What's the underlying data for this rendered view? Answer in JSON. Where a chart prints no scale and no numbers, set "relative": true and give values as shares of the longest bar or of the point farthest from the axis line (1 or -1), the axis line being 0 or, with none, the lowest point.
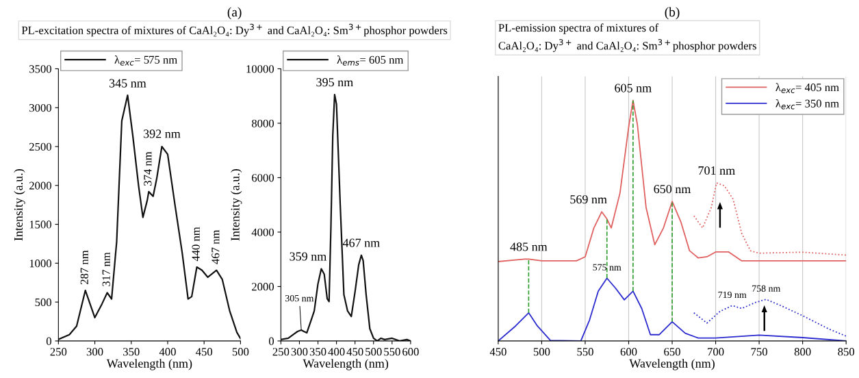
{
  "chart_data": [
    {
      "type": "line",
      "title": "(a)",
      "subtitle": "PL-excitation spectra of mixtures of CaAl₂O₄: Dy$^{3+}$ and CaAl₂O₄: Sm$^{3+}$phosphor powders",
      "xlabel": "Wavelength (nm)",
      "ylabel": "Intensity (a.u.)",
      "xlim": [
        250,
        500
      ],
      "ylim": [
        0,
        3500
      ],
      "xticks": [
        250,
        300,
        350,
        400,
        450,
        500
      ],
      "yticks": [
        0,
        500,
        1000,
        1500,
        2000,
        2500,
        3000,
        3500
      ],
      "legend": "top left",
      "grid": false,
      "series": [
        {
          "name": "λ$_{exc}$= 575 nm",
          "color": "#111111",
          "x": [
            250,
            265,
            275,
            287,
            300,
            310,
            317,
            323,
            330,
            337,
            345,
            352,
            360,
            366,
            372,
            374,
            380,
            385,
            392,
            400,
            410,
            415,
            420,
            428,
            433,
            440,
            447,
            455,
            467,
            475,
            485,
            495,
            500
          ],
          "values": [
            20,
            80,
            190,
            650,
            300,
            480,
            620,
            540,
            1280,
            2830,
            3160,
            2650,
            2000,
            1590,
            1810,
            1920,
            1860,
            2090,
            2500,
            2400,
            1750,
            1440,
            1130,
            540,
            570,
            950,
            910,
            820,
            910,
            790,
            390,
            110,
            30
          ]
        }
      ],
      "annotations": [
        {
          "text": "287 nm",
          "x": 287,
          "y": 650
        },
        {
          "text": "317 nm",
          "x": 317,
          "y": 625
        },
        {
          "text": "345 nm",
          "x": 345,
          "y": 3155
        },
        {
          "text": "374 nm",
          "x": 374,
          "y": 1918
        },
        {
          "text": "392 nm",
          "x": 392,
          "y": 2505
        },
        {
          "text": "440 nm",
          "x": 440,
          "y": 950
        },
        {
          "text": "467 nm",
          "x": 467,
          "y": 912
        }
      ]
    },
    {
      "type": "line",
      "xlabel": "Wavelength (nm)",
      "ylabel": "Intensity (a.u.)",
      "xlim": [
        250,
        600
      ],
      "ylim": [
        0,
        10000
      ],
      "xticks": [
        250,
        300,
        350,
        400,
        450,
        500,
        550,
        600
      ],
      "yticks": [
        0,
        2000,
        4000,
        6000,
        8000,
        10000
      ],
      "legend": "top left",
      "grid": false,
      "series": [
        {
          "name": "λ$_{ems}$= 605 nm",
          "color": "#111111",
          "x": [
            250,
            270,
            285,
            295,
            305,
            312,
            320,
            330,
            340,
            350,
            359,
            367,
            375,
            380,
            385,
            390,
            395,
            400,
            410,
            420,
            430,
            440,
            450,
            460,
            467,
            472,
            480,
            490,
            500,
            510,
            520,
            530,
            550,
            570,
            590,
            600
          ],
          "values": [
            50,
            100,
            250,
            350,
            400,
            350,
            300,
            700,
            1100,
            2100,
            2650,
            2450,
            1550,
            1450,
            4200,
            7550,
            9050,
            8700,
            5050,
            1700,
            1100,
            900,
            1800,
            2800,
            3150,
            2950,
            1700,
            450,
            100,
            0,
            100,
            50,
            100,
            0,
            50,
            0
          ]
        }
      ],
      "annotations": [
        {
          "text": "305 nm",
          "x": 305,
          "y": 400
        },
        {
          "text": "359 nm",
          "x": 359,
          "y": 2650
        },
        {
          "text": "395 nm",
          "x": 395,
          "y": 9050
        },
        {
          "text": "467 nm",
          "x": 467,
          "y": 3150
        }
      ]
    },
    {
      "type": "line",
      "relative": true,
      "title": "(b)",
      "subtitle": "PL-emission spectra of mixtures of\nCaAl₂O₄: Dy$^{3+}$ and CaAl₂O₄: Sm$^{3+}$phosphor powders",
      "xlabel": "Wavelength (nm)",
      "xlim": [
        450,
        850
      ],
      "xticks": [
        450,
        500,
        550,
        600,
        650,
        700,
        750,
        800,
        850
      ],
      "legend": "top right",
      "grid": "x",
      "series": [
        {
          "name": "λ$_{exc}$= 405 nm",
          "color": "#e06060",
          "line_style": "solid",
          "x": [
            450,
            480,
            485,
            500,
            540,
            550,
            560,
            569,
            575,
            580,
            590,
            600,
            605,
            610,
            620,
            630,
            640,
            650,
            660,
            670,
            680,
            690,
            700,
            715,
            730,
            750,
            850
          ],
          "values": [
            0.33,
            0.34,
            0.34,
            0.333,
            0.333,
            0.35,
            0.47,
            0.537,
            0.507,
            0.47,
            0.615,
            0.89,
            1,
            0.9,
            0.555,
            0.4,
            0.47,
            0.58,
            0.495,
            0.375,
            0.345,
            0.35,
            0.37,
            0.37,
            0.333,
            0.333,
            0.333
          ]
        },
        {
          "color": "#e06060",
          "line_style": "dotted",
          "x": [
            675,
            685,
            695,
            701,
            710,
            720,
            730,
            740,
            750,
            800,
            850
          ],
          "values": [
            0.52,
            0.47,
            0.555,
            0.657,
            0.645,
            0.59,
            0.447,
            0.375,
            0.365,
            0.369,
            0.357
          ]
        },
        {
          "name": "λ$_{exc}$= 350 nm",
          "color": "#2a2ad0",
          "line_style": "solid",
          "x": [
            450,
            470,
            485,
            495,
            510,
            545,
            555,
            565,
            575,
            585,
            595,
            605,
            615,
            625,
            635,
            650,
            665,
            680,
            700,
            750,
            800,
            850
          ],
          "values": [
            0,
            0.0625,
            0.117,
            0.0625,
            0.002,
            0,
            0.087,
            0.207,
            0.261,
            0.219,
            0.171,
            0.207,
            0.135,
            0.026,
            0.026,
            0.08,
            0.032,
            0.012,
            0.012,
            0.024,
            0.014,
            0
          ]
        },
        {
          "color": "#2a2ad0",
          "line_style": "dotted",
          "x": [
            675,
            690,
            705,
            719,
            730,
            745,
            758,
            775,
            800,
            830,
            850
          ],
          "values": [
            0.117,
            0.0745,
            0.123,
            0.147,
            0.135,
            0.159,
            0.173,
            0.147,
            0.105,
            0.05,
            0.02
          ]
        }
      ],
      "ref_lines": [
        {
          "axis": "x",
          "value": 485,
          "color": "#2e9e2e",
          "line_style": "dashed"
        },
        {
          "axis": "x",
          "value": 575,
          "color": "#2e9e2e",
          "line_style": "dashed"
        },
        {
          "axis": "x",
          "value": 605,
          "color": "#2e9e2e",
          "line_style": "dashed"
        },
        {
          "axis": "x",
          "value": 650,
          "color": "#2e9e2e",
          "line_style": "dashed"
        }
      ],
      "annotations": [
        {
          "text": "485 nm",
          "x": 485,
          "y": 0.34
        },
        {
          "text": "569 nm",
          "x": 569,
          "y": 0.537
        },
        {
          "text": "605 nm",
          "x": 605,
          "y": 1
        },
        {
          "text": "650 nm",
          "x": 650,
          "y": 0.58
        },
        {
          "text": "701 nm",
          "x": 701,
          "y": 0.657
        },
        {
          "text": "575 nm",
          "x": 575,
          "y": 0.261
        },
        {
          "text": "719 nm",
          "x": 719,
          "y": 0.147
        },
        {
          "text": "758 nm",
          "x": 758,
          "y": 0.173
        }
      ]
    }
  ]
}
